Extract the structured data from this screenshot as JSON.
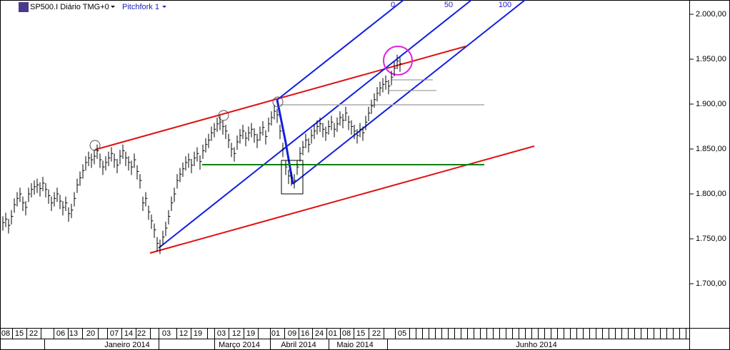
{
  "toolbar": {
    "symbol": "SP500.I Diário TMG+0",
    "study": "Pitchfork 1"
  },
  "chart_data": {
    "type": "ohlc",
    "pitchfork_levels": [
      0,
      50,
      100
    ],
    "color": "#000000",
    "ylim": [
      1650.8,
      2015.9
    ],
    "yticks": [
      {
        "value": 2000,
        "label": "2.000,00"
      },
      {
        "value": 1950,
        "label": "1.950,00"
      },
      {
        "value": 1900,
        "label": "1.900,00"
      },
      {
        "value": 1850,
        "label": "1.850,00"
      },
      {
        "value": 1800,
        "label": "1.800,00"
      },
      {
        "value": 1750,
        "label": "1.750,00"
      },
      {
        "value": 1700,
        "label": "1.700,00"
      }
    ],
    "date_labels": [
      "08",
      "15",
      "22",
      "06",
      "13",
      "20",
      "07",
      "14",
      "22",
      "03",
      "12",
      "19",
      "03",
      "12",
      "19",
      "01",
      "09",
      "16",
      "24",
      "01",
      "08",
      "15",
      "22",
      "05"
    ],
    "month_labels": [
      "Janeiro 2014",
      "Março 2014",
      "Abril 2014",
      "Maio 2014",
      "Junho 2014"
    ],
    "close": [
      1768,
      1772,
      1765,
      1775,
      1788,
      1795,
      1800,
      1790,
      1785,
      1800,
      1805,
      1808,
      1810,
      1806,
      1812,
      1805,
      1798,
      1790,
      1795,
      1800,
      1792,
      1785,
      1790,
      1778,
      1782,
      1795,
      1810,
      1818,
      1826,
      1835,
      1840,
      1838,
      1842,
      1848,
      1838,
      1830,
      1835,
      1840,
      1845,
      1838,
      1832,
      1842,
      1848,
      1840,
      1835,
      1830,
      1838,
      1825,
      1815,
      1790,
      1795,
      1780,
      1770,
      1760,
      1745,
      1742,
      1752,
      1762,
      1775,
      1790,
      1800,
      1815,
      1822,
      1828,
      1835,
      1838,
      1832,
      1840,
      1845,
      1836,
      1848,
      1855,
      1860,
      1868,
      1872,
      1878,
      1880,
      1875,
      1870,
      1860,
      1850,
      1845,
      1858,
      1865,
      1870,
      1862,
      1868,
      1872,
      1866,
      1860,
      1868,
      1874,
      1864,
      1878,
      1885,
      1892,
      1888,
      1870,
      1850,
      1830,
      1820,
      1818,
      1815,
      1830,
      1845,
      1852,
      1860,
      1855,
      1865,
      1870,
      1875,
      1878,
      1872,
      1868,
      1875,
      1880,
      1872,
      1878,
      1885,
      1882,
      1890,
      1880,
      1875,
      1870,
      1865,
      1872,
      1868,
      1880,
      1890,
      1898,
      1905,
      1912,
      1918,
      1922,
      1925,
      1920,
      1930,
      1940,
      1948,
      1945
    ],
    "high": [
      1775,
      1779,
      1772,
      1782,
      1795,
      1802,
      1807,
      1797,
      1792,
      1807,
      1812,
      1815,
      1817,
      1813,
      1819,
      1812,
      1805,
      1797,
      1802,
      1807,
      1799,
      1792,
      1797,
      1785,
      1789,
      1802,
      1817,
      1825,
      1833,
      1842,
      1847,
      1845,
      1849,
      1855,
      1845,
      1837,
      1842,
      1847,
      1852,
      1845,
      1839,
      1849,
      1855,
      1847,
      1842,
      1837,
      1845,
      1832,
      1822,
      1797,
      1802,
      1787,
      1777,
      1767,
      1752,
      1749,
      1759,
      1769,
      1782,
      1797,
      1807,
      1822,
      1829,
      1835,
      1842,
      1845,
      1839,
      1847,
      1852,
      1843,
      1855,
      1862,
      1867,
      1875,
      1879,
      1885,
      1887,
      1882,
      1877,
      1867,
      1857,
      1852,
      1865,
      1872,
      1877,
      1869,
      1875,
      1879,
      1873,
      1867,
      1875,
      1881,
      1871,
      1885,
      1892,
      1899,
      1895,
      1877,
      1857,
      1837,
      1827,
      1825,
      1822,
      1837,
      1852,
      1859,
      1867,
      1862,
      1872,
      1877,
      1882,
      1885,
      1879,
      1875,
      1882,
      1887,
      1879,
      1885,
      1892,
      1889,
      1897,
      1887,
      1882,
      1877,
      1872,
      1879,
      1875,
      1887,
      1897,
      1905,
      1912,
      1919,
      1925,
      1929,
      1932,
      1927,
      1937,
      1947,
      1955,
      1952
    ],
    "low": [
      1759,
      1763,
      1756,
      1766,
      1779,
      1786,
      1791,
      1781,
      1776,
      1791,
      1796,
      1799,
      1801,
      1797,
      1803,
      1796,
      1789,
      1781,
      1786,
      1791,
      1783,
      1776,
      1781,
      1769,
      1773,
      1786,
      1801,
      1809,
      1817,
      1826,
      1831,
      1829,
      1833,
      1839,
      1829,
      1821,
      1826,
      1831,
      1836,
      1829,
      1823,
      1833,
      1839,
      1831,
      1826,
      1821,
      1829,
      1816,
      1806,
      1781,
      1786,
      1771,
      1761,
      1751,
      1736,
      1733,
      1743,
      1753,
      1766,
      1781,
      1791,
      1806,
      1813,
      1819,
      1826,
      1829,
      1823,
      1831,
      1836,
      1827,
      1839,
      1846,
      1851,
      1859,
      1863,
      1869,
      1871,
      1866,
      1861,
      1851,
      1841,
      1836,
      1849,
      1856,
      1861,
      1853,
      1859,
      1863,
      1857,
      1851,
      1859,
      1865,
      1855,
      1869,
      1876,
      1883,
      1879,
      1861,
      1841,
      1821,
      1811,
      1809,
      1806,
      1821,
      1836,
      1843,
      1851,
      1846,
      1856,
      1861,
      1866,
      1869,
      1863,
      1859,
      1866,
      1871,
      1863,
      1869,
      1876,
      1873,
      1881,
      1871,
      1866,
      1861,
      1856,
      1863,
      1859,
      1871,
      1881,
      1889,
      1896,
      1903,
      1909,
      1913,
      1916,
      1911,
      1921,
      1931,
      1939,
      1936
    ]
  }
}
